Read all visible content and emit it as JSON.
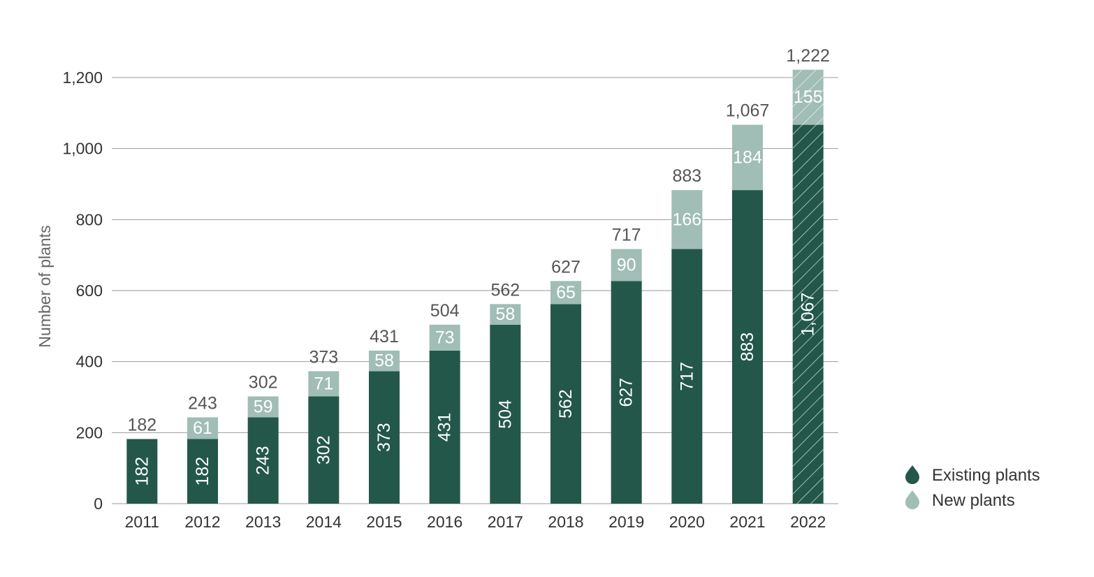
{
  "chart_data": {
    "type": "bar",
    "stacked": true,
    "categories": [
      "2011",
      "2012",
      "2013",
      "2014",
      "2015",
      "2016",
      "2017",
      "2018",
      "2019",
      "2020",
      "2021",
      "2022"
    ],
    "series": [
      {
        "name": "Existing plants",
        "color": "#23574a",
        "values": [
          182,
          182,
          243,
          302,
          373,
          431,
          504,
          562,
          627,
          717,
          883,
          1067
        ]
      },
      {
        "name": "New plants",
        "color": "#a0bdb6",
        "values": [
          0,
          61,
          59,
          71,
          58,
          73,
          58,
          65,
          90,
          166,
          184,
          155
        ]
      }
    ],
    "totals": [
      182,
      243,
      302,
      373,
      431,
      504,
      562,
      627,
      717,
      883,
      1067,
      1222
    ],
    "total_labels": [
      "182",
      "243",
      "302",
      "373",
      "431",
      "504",
      "562",
      "627",
      "717",
      "883",
      "1,067",
      "1,222"
    ],
    "existing_labels": [
      "182",
      "182",
      "243",
      "302",
      "373",
      "431",
      "504",
      "562",
      "627",
      "717",
      "883",
      "1,067"
    ],
    "new_labels": [
      "",
      "61",
      "59",
      "71",
      "58",
      "73",
      "58",
      "65",
      "90",
      "166",
      "184",
      "155"
    ],
    "hatched_category": "2022",
    "ylabel": "Number of plants",
    "xlabel": "",
    "ylim": [
      0,
      1200
    ],
    "yticks": [
      0,
      200,
      400,
      600,
      800,
      1000,
      1200
    ],
    "ytick_labels": [
      "0",
      "200",
      "400",
      "600",
      "800",
      "1,000",
      "1,200"
    ],
    "grid": true,
    "legend_position": "bottom-right",
    "legend": [
      {
        "label": "Existing plants",
        "color": "#23574a"
      },
      {
        "label": "New plants",
        "color": "#a0bdb6"
      }
    ]
  }
}
